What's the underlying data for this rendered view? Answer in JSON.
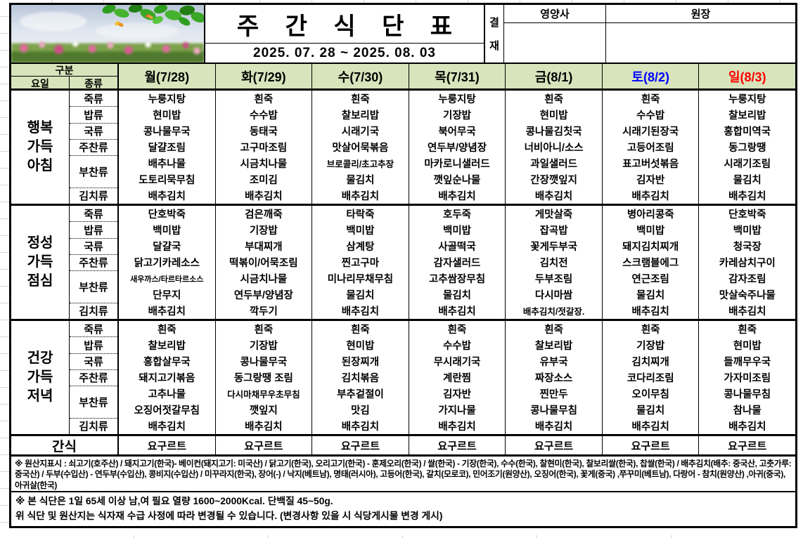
{
  "title": "주 간 식 단 표",
  "date_range": "2025. 07. 28 ~ 2025. 08. 03",
  "approval": {
    "stamp": [
      "결",
      "재"
    ],
    "columns": [
      "영양사",
      "원장"
    ]
  },
  "corner": {
    "gubun": "구분",
    "row_label": "요일",
    "col_label": "종류"
  },
  "days": [
    {
      "label": "월(7/28)",
      "color": "#000000"
    },
    {
      "label": "화(7/29)",
      "color": "#000000"
    },
    {
      "label": "수(7/30)",
      "color": "#000000"
    },
    {
      "label": "목(7/31)",
      "color": "#000000"
    },
    {
      "label": "금(8/1)",
      "color": "#000000"
    },
    {
      "label": "토(8/2)",
      "color": "#0000ff"
    },
    {
      "label": "일(8/3)",
      "color": "#ff0000"
    }
  ],
  "categories": [
    {
      "label": "죽류",
      "rows": 1
    },
    {
      "label": "밥류",
      "rows": 1
    },
    {
      "label": "국류",
      "rows": 1
    },
    {
      "label": "주찬류",
      "rows": 1
    },
    {
      "label": "부찬류",
      "rows": 2
    },
    {
      "label": "김치류",
      "rows": 1
    }
  ],
  "meals": [
    {
      "name": "행복\n가득\n아침",
      "days": [
        [
          "누룽지탕",
          "현미밥",
          "콩나물무국",
          "달걀조림",
          "배추나물",
          "도토리묵무침",
          "배추김치"
        ],
        [
          "흰죽",
          "수수밥",
          "동태국",
          "고구마조림",
          "시금치나물",
          "조미김",
          "배추김치"
        ],
        [
          "흰죽",
          "찰보리밥",
          "시래기국",
          "맛살어묵볶음",
          "브로콜리/초고추장",
          "물김치",
          "배추김치"
        ],
        [
          "누룽지탕",
          "기장밥",
          "북어무국",
          "연두부/양념장",
          "마카로니샐러드",
          "깻잎순나물",
          "배추김치"
        ],
        [
          "흰죽",
          "현미밥",
          "콩나물김칫국",
          "너비아니/소스",
          "과일샐러드",
          "간장깻잎지",
          "배추김치"
        ],
        [
          "흰죽",
          "수수밥",
          "시래기된장국",
          "고등어조림",
          "표고버섯볶음",
          "김자반",
          "배추김치"
        ],
        [
          "누룽지탕",
          "찰보리밥",
          "홍합미역국",
          "동그랑땡",
          "시래기조림",
          "물김치",
          "배추김치"
        ]
      ]
    },
    {
      "name": "정성\n가득\n점심",
      "days": [
        [
          "단호박죽",
          "백미밥",
          "달걀국",
          "닭고기카레소스",
          "새우까스/타르타르소스",
          "단무지",
          "배추김치"
        ],
        [
          "검은깨죽",
          "기장밥",
          "부대찌개",
          "떡볶이/어묵조림",
          "시금치나물",
          "연두부/양념장",
          "깍두기"
        ],
        [
          "타락죽",
          "백미밥",
          "삼계탕",
          "찐고구마",
          "미나리무채무침",
          "물김치",
          "배추김치"
        ],
        [
          "호두죽",
          "백미밥",
          "사골떡국",
          "감자샐러드",
          "고추쌈장무침",
          "물김치",
          "배추김치"
        ],
        [
          "게맛살죽",
          "잡곡밥",
          "꽃게두부국",
          "김치전",
          "두부조림",
          "다시마쌈",
          "배추김치/젓갈장."
        ],
        [
          "병아리콩죽",
          "백미밥",
          "돼지김치찌개",
          "스크램블에그",
          "연근조림",
          "물김치",
          "배추김치"
        ],
        [
          "단호박죽",
          "백미밥",
          "청국장",
          "카레삼치구이",
          "감자조림",
          "맛살숙주나물",
          "배추김치"
        ]
      ]
    },
    {
      "name": "건강\n가득\n저녁",
      "days": [
        [
          "흰죽",
          "찰보리밥",
          "홍합살무국",
          "돼지고기볶음",
          "고추나물",
          "오징어젓갈무침",
          "배추김치"
        ],
        [
          "흰죽",
          "기장밥",
          "콩나물무국",
          "동그랑땡 조림",
          "다시마채무우초무침",
          "깻잎지",
          "배추김치"
        ],
        [
          "흰죽",
          "현미밥",
          "된장찌개",
          "김치볶음",
          "부추겉절이",
          "맛김",
          "배추김치"
        ],
        [
          "흰죽",
          "수수밥",
          "무시래기국",
          "계란찜",
          "김자반",
          "가지나물",
          "배추김치"
        ],
        [
          "흰죽",
          "찰보리밥",
          "유부국",
          "짜장소스",
          "찐만두",
          "콩나물무침",
          "배추김치"
        ],
        [
          "흰죽",
          "기장밥",
          "김치찌개",
          "코다리조림",
          "오이무침",
          "물김치",
          "배추김치"
        ],
        [
          "흰죽",
          "현미밥",
          "들깨무우국",
          "가자미조림",
          "콩나물무침",
          "참나물",
          "배추김치"
        ]
      ]
    }
  ],
  "snack": {
    "label": "간식",
    "values": [
      "요구르트",
      "요구르트",
      "요구르트",
      "요구르트",
      "요구르트",
      "요구르트",
      "요구르트"
    ]
  },
  "notes": {
    "origin": "※ 원산지표시 : 쇠고기(호주산) / 돼지고기(한국)- 베이컨(돼지고기: 미국산) / 닭고기(한국), 오리고기(한국) - 훈제오리(한국) / 쌀(한국) - 기장(한국), 수수(한국), 찰현미(한국), 찰보리쌀(한국), 찹쌀(한국) / 배추김치(배추: 중국산, 고춧가루: 중국산) / 두부(수입산) - 연두부(수입산), 콩비지(수입산) / 미꾸라지(한국), 장어(-) / 낙지(베트남), 명태(러시아), 고등어(한국), 갈치(모로코), 민어조기(원양산),  오징어(한국), 꽃게(중국) ,쭈꾸미(베트남), 다랑어 - 참치(원양산) ,아귀(중국), 아귀살(한국)",
    "calorie": "※ 본 식단은 1일 65세 이상 남,여 필요 열량 1600~2000Kcal. 단백질 45~50g.",
    "change": "위 식단 및 원산지는 식자재 수급 사정에 따라 변경될 수 있습니다. (변경사항 있을 시 식당게시물 변경 게시)"
  },
  "colors": {
    "header_green": "#d8e4bc",
    "saturday": "#0000ff",
    "sunday": "#ff0000"
  }
}
